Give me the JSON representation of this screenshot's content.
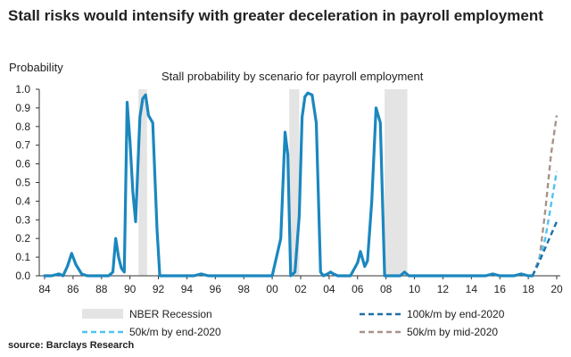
{
  "headline": "Stall risks would intensify with greater deceleration in payroll employment",
  "source": "source: Barclays Research",
  "colors": {
    "main": "#1b87bf",
    "recession": "#e4e4e4",
    "s100k_end2020": "#1e6fa8",
    "s50k_end2020": "#4fc3ef",
    "s50k_mid2020": "#a8938a",
    "axis": "#333333"
  },
  "chart_data": {
    "type": "line",
    "title": "Stall probability by scenario for payroll employment",
    "ylabel": "Probability",
    "xlabel": "",
    "xlim": [
      84,
      20
    ],
    "ylim": [
      0,
      1.0
    ],
    "xticks": [
      "84",
      "86",
      "88",
      "90",
      "92",
      "94",
      "96",
      "98",
      "00",
      "02",
      "04",
      "06",
      "08",
      "10",
      "12",
      "14",
      "16",
      "18",
      "20"
    ],
    "yticks": [
      "0.0",
      "0.1",
      "0.2",
      "0.3",
      "0.4",
      "0.5",
      "0.6",
      "0.7",
      "0.8",
      "0.9",
      "1.0"
    ],
    "grid": false,
    "legend_position": "bottom",
    "recessions": [
      [
        1990.6,
        1991.2
      ],
      [
        2001.2,
        2001.9
      ],
      [
        2007.9,
        2009.5
      ]
    ],
    "legend": {
      "recession": "NBER Recession",
      "s100k_end2020": "100k/m by end-2020",
      "s50k_end2020": "50k/m by end-2020",
      "s50k_mid2020": "50k/m by mid-2020"
    },
    "series": [
      {
        "key": "main",
        "x": [
          1984.0,
          1984.5,
          1985.0,
          1985.3,
          1985.6,
          1985.9,
          1986.2,
          1986.6,
          1987.0,
          1987.5,
          1988.0,
          1988.5,
          1988.8,
          1989.0,
          1989.2,
          1989.4,
          1989.6,
          1989.8,
          1990.0,
          1990.2,
          1990.4,
          1990.7,
          1990.9,
          1991.1,
          1991.3,
          1991.6,
          1991.9,
          1992.1,
          1992.3,
          1992.6,
          1993.0,
          1993.5,
          1994.0,
          1994.5,
          1995.0,
          1995.5,
          1996.0,
          1997.0,
          1998.0,
          1999.0,
          1999.5,
          2000.0,
          2000.3,
          2000.6,
          2000.9,
          2001.1,
          2001.3,
          2001.6,
          2001.9,
          2002.1,
          2002.3,
          2002.5,
          2002.8,
          2003.1,
          2003.4,
          2003.6,
          2003.9,
          2004.1,
          2004.3,
          2004.6,
          2005.0,
          2005.5,
          2006.0,
          2006.2,
          2006.5,
          2006.7,
          2007.0,
          2007.3,
          2007.6,
          2007.9,
          2008.1,
          2008.3,
          2008.6,
          2009.0,
          2009.3,
          2009.6,
          2010.0,
          2011.0,
          2012.0,
          2013.0,
          2014.0,
          2015.0,
          2015.5,
          2016.0,
          2016.5,
          2017.0,
          2017.5,
          2018.0,
          2018.3
        ],
        "values": [
          0.0,
          0.0,
          0.01,
          0.0,
          0.05,
          0.12,
          0.06,
          0.01,
          0.0,
          0.0,
          0.0,
          0.0,
          0.02,
          0.2,
          0.1,
          0.04,
          0.02,
          0.93,
          0.72,
          0.45,
          0.29,
          0.85,
          0.95,
          0.97,
          0.86,
          0.82,
          0.25,
          0.0,
          0.0,
          0.0,
          0.0,
          0.0,
          0.0,
          0.0,
          0.01,
          0.0,
          0.0,
          0.0,
          0.0,
          0.0,
          0.0,
          0.0,
          0.1,
          0.2,
          0.77,
          0.65,
          0.0,
          0.02,
          0.32,
          0.85,
          0.96,
          0.98,
          0.97,
          0.82,
          0.02,
          0.0,
          0.01,
          0.02,
          0.01,
          0.0,
          0.0,
          0.0,
          0.07,
          0.13,
          0.05,
          0.08,
          0.4,
          0.9,
          0.82,
          0.0,
          0.0,
          0.0,
          0.0,
          0.0,
          0.02,
          0.0,
          0.0,
          0.0,
          0.0,
          0.0,
          0.0,
          0.0,
          0.01,
          0.0,
          0.0,
          0.0,
          0.01,
          0.0,
          0.0
        ]
      },
      {
        "key": "s100k_end2020",
        "x": [
          2018.3,
          2018.8,
          2019.2,
          2019.6,
          2020.0
        ],
        "values": [
          0.0,
          0.08,
          0.15,
          0.22,
          0.29
        ]
      },
      {
        "key": "s50k_end2020",
        "x": [
          2018.3,
          2018.8,
          2019.2,
          2019.6,
          2020.0
        ],
        "values": [
          0.0,
          0.09,
          0.2,
          0.38,
          0.56
        ]
      },
      {
        "key": "s50k_mid2020",
        "x": [
          2018.3,
          2018.8,
          2019.2,
          2019.6,
          2020.0
        ],
        "values": [
          0.0,
          0.1,
          0.35,
          0.65,
          0.86
        ]
      }
    ]
  }
}
